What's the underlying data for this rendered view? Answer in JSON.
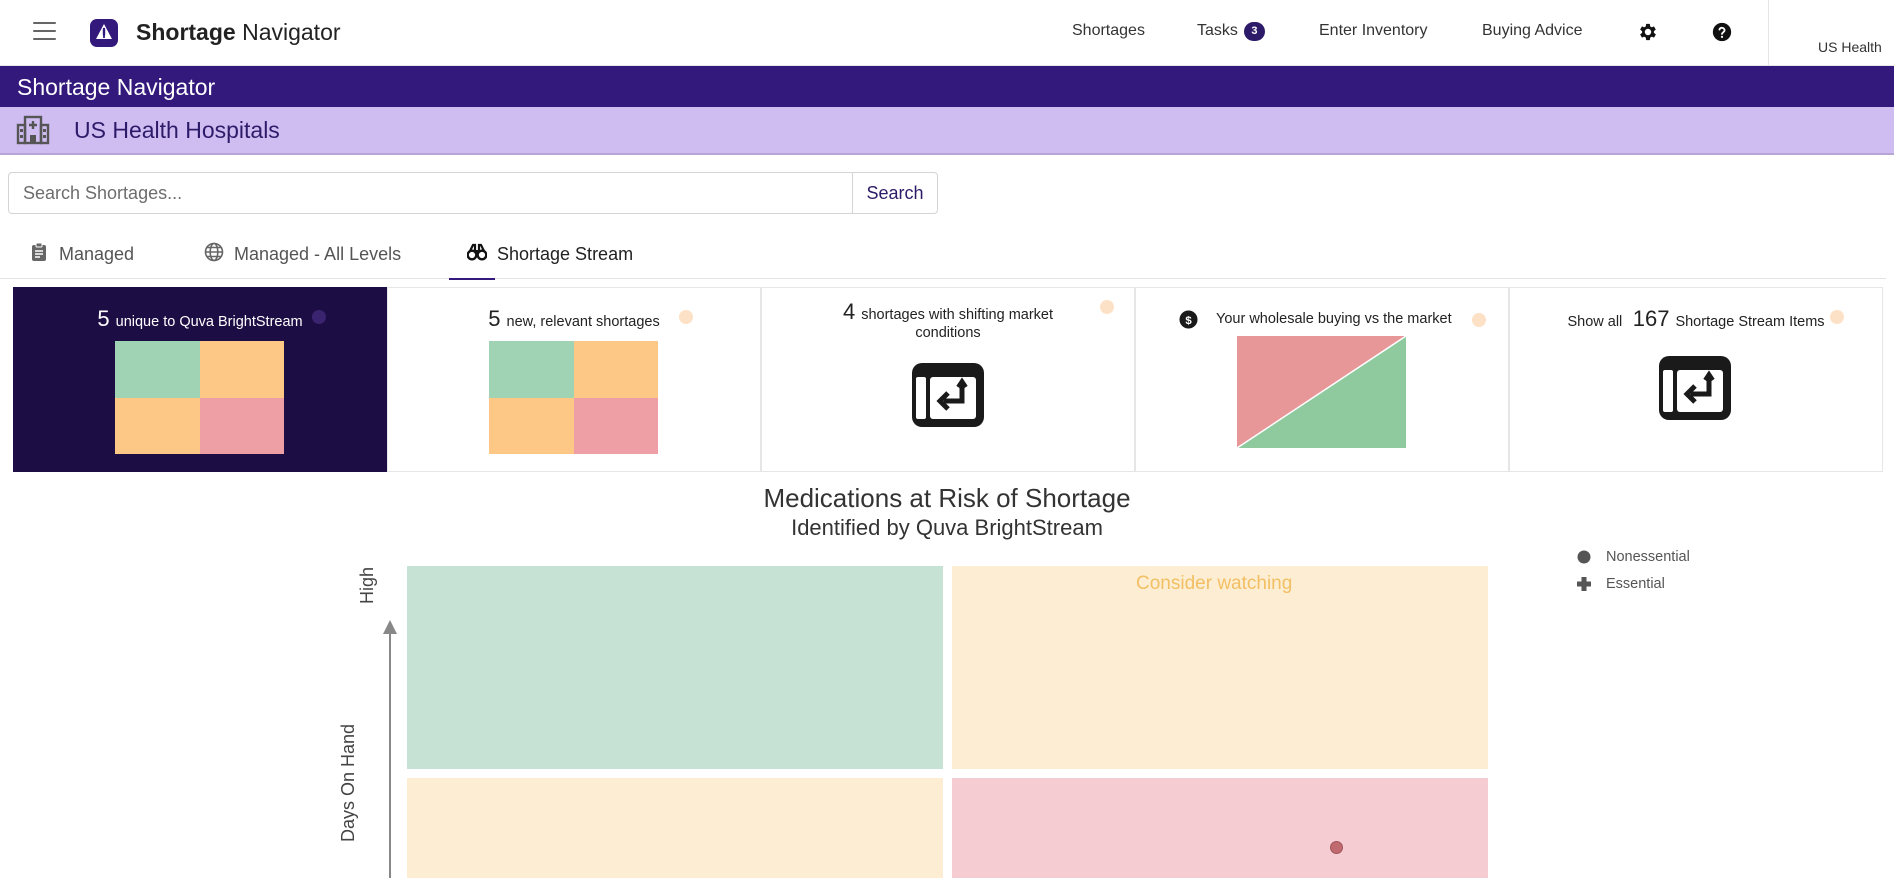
{
  "topnav": {
    "brand_bold": "Shortage",
    "brand_rest": "Navigator",
    "links": {
      "shortages": "Shortages",
      "tasks": "Tasks",
      "tasks_count": "3",
      "enter_inventory": "Enter Inventory",
      "buying_advice": "Buying Advice"
    },
    "icons": [
      "menu-icon",
      "logo-icon",
      "gear-icon",
      "help-icon"
    ],
    "account": "US Health"
  },
  "app_banner": {
    "title": "Shortage Navigator"
  },
  "org_banner": {
    "name": "US Health Hospitals",
    "icon": "hospital-icon"
  },
  "search": {
    "placeholder": "Search Shortages...",
    "value": "",
    "button": "Search"
  },
  "tabs": [
    {
      "label": "Managed",
      "icon": "clipboard-icon",
      "active": false
    },
    {
      "label": "Managed - All Levels",
      "icon": "globe-icon",
      "active": false
    },
    {
      "label": "Shortage Stream",
      "icon": "binoculars-icon",
      "active": true
    }
  ],
  "cards": [
    {
      "number": "5",
      "text": "unique to Quva BrightStream",
      "visual": "quadrant",
      "selected": true
    },
    {
      "number": "5",
      "text": "new, relevant shortages",
      "visual": "quadrant",
      "selected": false
    },
    {
      "number": "4",
      "text_line1": "shortages with shifting market",
      "text_line2": "conditions",
      "visual": "shift-icon",
      "selected": false
    },
    {
      "text": "Your wholesale buying vs the market",
      "icon": "dollar-icon",
      "visual": "diagonal",
      "selected": false
    },
    {
      "prefix": "Show all",
      "number": "167",
      "text": "Shortage Stream Items",
      "visual": "shift-icon",
      "selected": false
    }
  ],
  "chart": {
    "title": "Medications at Risk of Shortage",
    "subtitle": "Identified by Quva BrightStream",
    "y_axis_label": "Days On Hand",
    "y_axis_high": "High",
    "zone_label": "Consider watching",
    "zone_colors": {
      "top_left": "#c5e2d5",
      "top_right": "#fdeed3",
      "bottom_left": "#fdeed3",
      "bottom_right": "#f4ccd2"
    },
    "legend": [
      {
        "label": "Nonessential",
        "symbol": "circle"
      },
      {
        "label": "Essential",
        "symbol": "plus"
      }
    ],
    "points": [
      {
        "quadrant": "bottom-right",
        "type": "Nonessential"
      }
    ]
  }
}
